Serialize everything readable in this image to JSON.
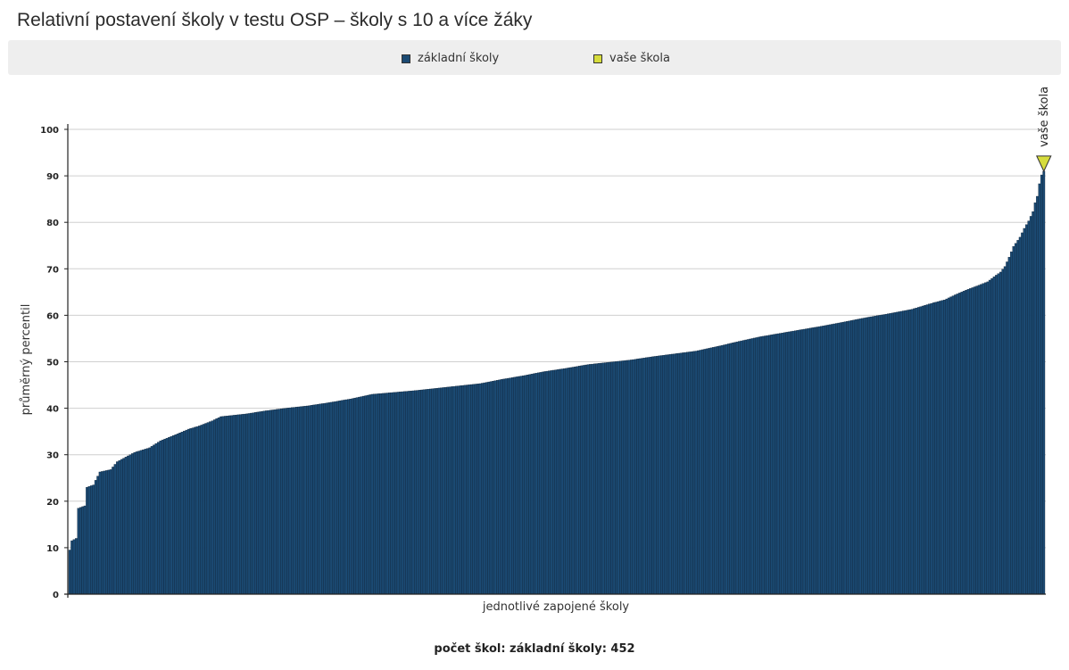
{
  "title": "Relativní postavení školy v testu OSP – školy s 10 a více žáky",
  "legend": {
    "items": [
      {
        "label": "základní školy",
        "color": "#1b4a73"
      },
      {
        "label": "vaše škola",
        "color": "#d6dc3c"
      }
    ]
  },
  "footer": "počet škol: základní školy: 452",
  "chart_data": {
    "type": "bar",
    "xlabel": "jednotlivé zapojené školy",
    "ylabel": "průměrný percentil",
    "ylim": [
      0,
      100
    ],
    "yticks": [
      0,
      10,
      20,
      30,
      40,
      50,
      60,
      70,
      80,
      90,
      100
    ],
    "grid": true,
    "legend_position": "top",
    "bar_count": 452,
    "bar_color": "#1b4a73",
    "bar_edge_color": "#0b1e33",
    "highlight": {
      "label": "vaše škola",
      "value": 91,
      "color": "#d6dc3c"
    },
    "profile": [
      [
        0,
        9.5
      ],
      [
        1,
        11.5
      ],
      [
        3,
        12
      ],
      [
        4,
        18.5
      ],
      [
        7,
        19
      ],
      [
        8,
        23
      ],
      [
        11,
        23.5
      ],
      [
        12,
        24.5
      ],
      [
        14,
        26.3
      ],
      [
        19,
        26.8
      ],
      [
        22,
        28.5
      ],
      [
        26,
        29.5
      ],
      [
        30,
        30.5
      ],
      [
        37,
        31.5
      ],
      [
        42,
        33
      ],
      [
        50,
        34.5
      ],
      [
        55,
        35.5
      ],
      [
        60,
        36.2
      ],
      [
        66,
        37.3
      ],
      [
        70,
        38.2
      ],
      [
        82,
        38.8
      ],
      [
        90,
        39.4
      ],
      [
        100,
        40
      ],
      [
        110,
        40.5
      ],
      [
        120,
        41.2
      ],
      [
        130,
        42
      ],
      [
        140,
        43
      ],
      [
        150,
        43.4
      ],
      [
        160,
        43.8
      ],
      [
        170,
        44.3
      ],
      [
        180,
        44.8
      ],
      [
        190,
        45.3
      ],
      [
        200,
        46.2
      ],
      [
        210,
        47
      ],
      [
        220,
        47.9
      ],
      [
        230,
        48.6
      ],
      [
        240,
        49.4
      ],
      [
        250,
        49.9
      ],
      [
        260,
        50.4
      ],
      [
        270,
        51.1
      ],
      [
        280,
        51.7
      ],
      [
        290,
        52.3
      ],
      [
        300,
        53.3
      ],
      [
        310,
        54.4
      ],
      [
        320,
        55.4
      ],
      [
        330,
        56.2
      ],
      [
        340,
        57
      ],
      [
        350,
        57.8
      ],
      [
        360,
        58.7
      ],
      [
        370,
        59.6
      ],
      [
        380,
        60.4
      ],
      [
        390,
        61.3
      ],
      [
        400,
        62.7
      ],
      [
        405,
        63.3
      ],
      [
        410,
        64.4
      ],
      [
        415,
        65.4
      ],
      [
        420,
        66.3
      ],
      [
        425,
        67.2
      ],
      [
        428,
        68.3
      ],
      [
        431,
        69.3
      ],
      [
        433,
        70.5
      ],
      [
        435,
        72.5
      ],
      [
        437,
        74.8
      ],
      [
        440,
        76.8
      ],
      [
        442,
        78.7
      ],
      [
        444,
        80.3
      ],
      [
        446,
        82.3
      ],
      [
        447,
        84.2
      ],
      [
        448,
        85.6
      ],
      [
        449,
        88.3
      ],
      [
        450,
        90.2
      ],
      [
        451,
        91
      ]
    ]
  }
}
